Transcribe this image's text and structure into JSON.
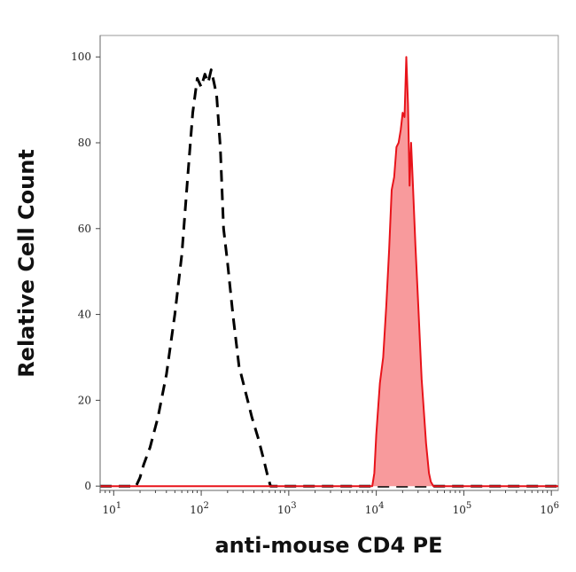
{
  "chart_data": {
    "type": "area",
    "title": "",
    "xlabel": "anti-mouse CD4 PE",
    "ylabel": "Relative Cell Count",
    "x_scale": "log",
    "xlim": [
      7,
      1200000
    ],
    "ylim": [
      -1,
      105
    ],
    "x_ticks": [
      {
        "base": "10",
        "exp": "1",
        "value": 10
      },
      {
        "base": "10",
        "exp": "2",
        "value": 100
      },
      {
        "base": "10",
        "exp": "3",
        "value": 1000
      },
      {
        "base": "10",
        "exp": "4",
        "value": 10000
      },
      {
        "base": "10",
        "exp": "5",
        "value": 100000
      },
      {
        "base": "10",
        "exp": "6",
        "value": 1000000
      }
    ],
    "y_ticks": [
      0,
      20,
      40,
      60,
      80,
      100
    ],
    "grid": false,
    "legend": "none",
    "series": [
      {
        "style": "dashed",
        "color": "#000000",
        "x": [
          7,
          18,
          20,
          22,
          26,
          32,
          40,
          50,
          60,
          70,
          80,
          90,
          100,
          110,
          120,
          130,
          140,
          150,
          165,
          180,
          200,
          230,
          270,
          320,
          380,
          450,
          520,
          580,
          620,
          700,
          1200000
        ],
        "y": [
          0,
          0,
          2,
          5,
          9,
          16,
          26,
          40,
          54,
          72,
          87,
          95,
          93,
          96,
          94,
          97,
          94,
          91,
          79,
          60,
          52,
          40,
          28,
          22,
          16,
          11,
          6,
          2,
          0,
          0,
          0
        ]
      },
      {
        "style": "solid-filled",
        "color": "#e8131a",
        "fill": "#f89a9c",
        "x": [
          7,
          9000,
          9500,
          10000,
          11000,
          12000,
          13000,
          14000,
          15000,
          16000,
          17000,
          18000,
          19000,
          20000,
          21000,
          22000,
          23000,
          24000,
          25000,
          26000,
          28000,
          30000,
          33000,
          37000,
          40000,
          42000,
          45000,
          60000,
          1200000
        ],
        "y": [
          0,
          0,
          3,
          12,
          24,
          30,
          42,
          55,
          69,
          72,
          79,
          80,
          83,
          87,
          86,
          100,
          89,
          70,
          80,
          72,
          56,
          43,
          25,
          10,
          3,
          1,
          0,
          0,
          0
        ]
      }
    ]
  }
}
